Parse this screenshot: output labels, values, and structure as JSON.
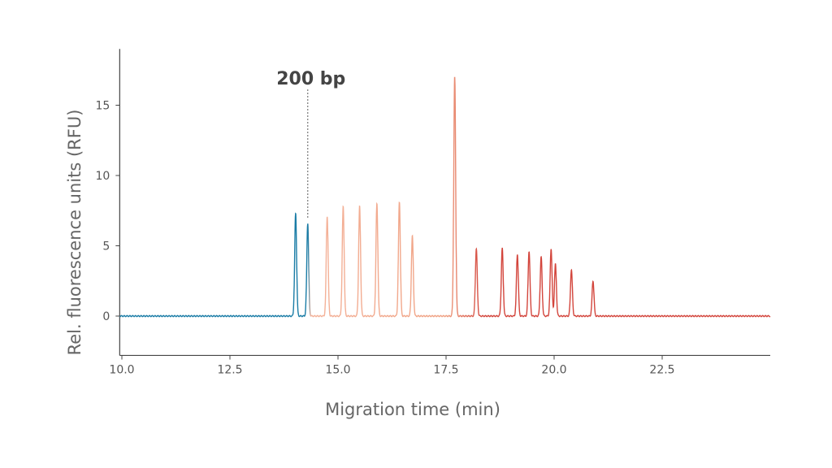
{
  "chart_data": {
    "type": "line",
    "title": "",
    "xlabel": "Migration time (min)",
    "ylabel": "Rel. fluorescence units (RFU)",
    "xlim": [
      9.95,
      25.0
    ],
    "ylim": [
      -2.8,
      19.0
    ],
    "xticks": [
      10.0,
      12.5,
      15.0,
      17.5,
      20.0,
      22.5
    ],
    "xtick_labels": [
      "10.0",
      "12.5",
      "15.0",
      "17.5",
      "20.0",
      "22.5"
    ],
    "yticks": [
      0,
      5,
      10,
      15
    ],
    "ytick_labels": [
      "0",
      "5",
      "10",
      "15"
    ],
    "grid": false,
    "baseline": 0,
    "peaks": [
      {
        "time": 14.02,
        "rfu": 7.3
      },
      {
        "time": 14.3,
        "rfu": 6.6
      },
      {
        "time": 14.75,
        "rfu": 7.1
      },
      {
        "time": 15.12,
        "rfu": 7.8
      },
      {
        "time": 15.5,
        "rfu": 7.8
      },
      {
        "time": 15.9,
        "rfu": 8.0
      },
      {
        "time": 16.42,
        "rfu": 8.1
      },
      {
        "time": 16.72,
        "rfu": 5.7
      },
      {
        "time": 17.7,
        "rfu": 17.0
      },
      {
        "time": 18.2,
        "rfu": 4.8
      },
      {
        "time": 18.8,
        "rfu": 4.8
      },
      {
        "time": 19.15,
        "rfu": 4.4
      },
      {
        "time": 19.42,
        "rfu": 4.6
      },
      {
        "time": 19.7,
        "rfu": 4.2
      },
      {
        "time": 19.93,
        "rfu": 4.8
      },
      {
        "time": 20.03,
        "rfu": 3.7
      },
      {
        "time": 20.4,
        "rfu": 3.3
      },
      {
        "time": 20.9,
        "rfu": 2.5
      }
    ],
    "annotations": [
      {
        "text": "200 bp",
        "time": 14.3
      }
    ],
    "colors": {
      "start": "#1a7ca6",
      "middle": "#f4b39a",
      "end": "#d3453c",
      "axis": "#444444",
      "annotation_line": "#777777"
    }
  }
}
